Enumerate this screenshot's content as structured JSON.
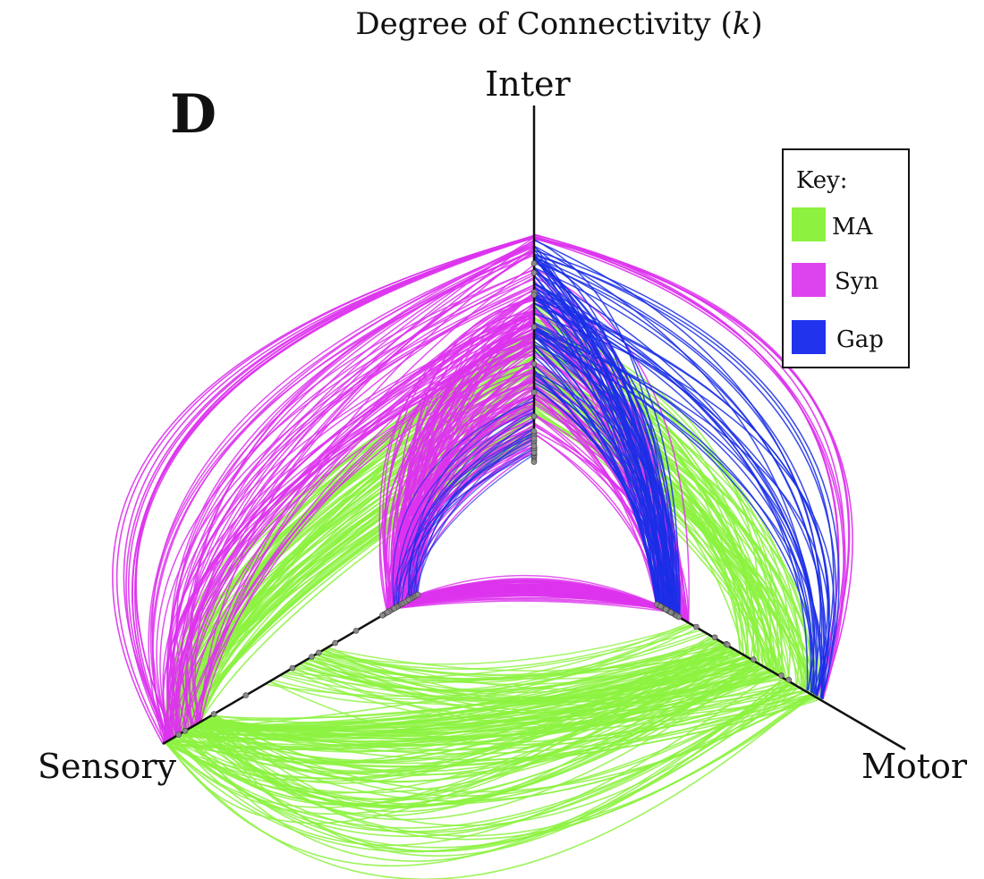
{
  "figure": {
    "title": "Degree of Connectivity (k)",
    "title_main": "Degree of Connectivity (",
    "title_var": "k",
    "title_close": ")",
    "panel_letter": "D"
  },
  "axes": [
    {
      "id": "inter",
      "label": "Inter"
    },
    {
      "id": "sensory",
      "label": "Sensory"
    },
    {
      "id": "motor",
      "label": "Motor"
    }
  ],
  "legend": {
    "title": "Key:",
    "entries": [
      {
        "label": "MA",
        "color": "#8cf23f"
      },
      {
        "label": "Syn",
        "color": "#dd44ee"
      },
      {
        "label": "Gap",
        "color": "#2233ee"
      }
    ]
  },
  "colors": {
    "ma": "#8cf23f",
    "syn": "#dd33ee",
    "gap": "#1a2ee6",
    "axis": "#111111",
    "node": "#8a8a8a"
  }
}
